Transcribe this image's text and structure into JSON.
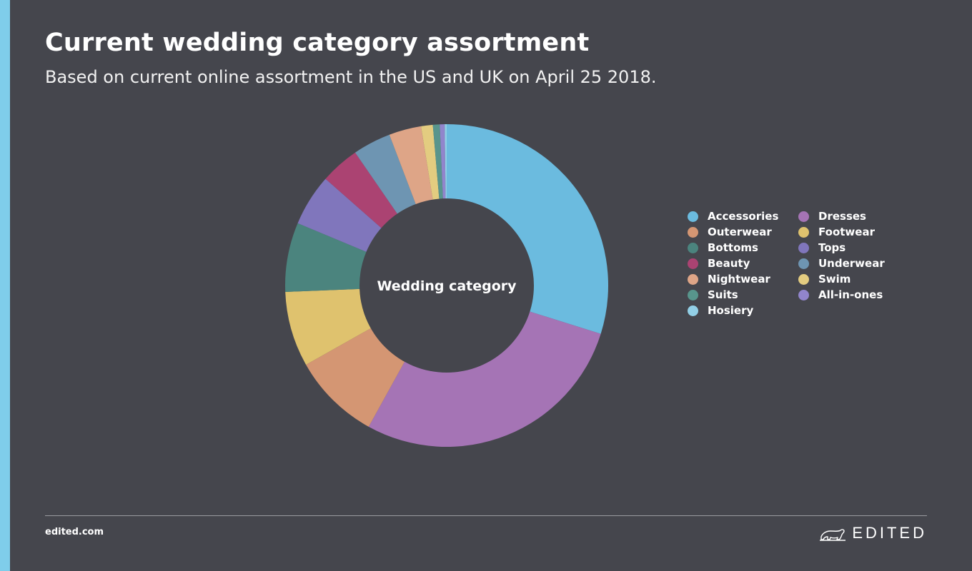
{
  "header": {
    "title": "Current wedding category assortment",
    "subtitle": "Based on current online assortment in the US and UK on April 25 2018."
  },
  "footer": {
    "url": "edited.com",
    "brand": "EDITED",
    "brand_icon": "polar-bear-icon"
  },
  "colors": {
    "background": "#45464d",
    "accent": "#7fcdea"
  },
  "chart_data": {
    "type": "pie",
    "donut": true,
    "center_label": "Wedding category",
    "legend_position": "right",
    "series": [
      {
        "name": "Accessories",
        "value": 30.5,
        "color": "#6bbbdf"
      },
      {
        "name": "Dresses",
        "value": 28.8,
        "color": "#a574b5"
      },
      {
        "name": "Outerwear",
        "value": 9.0,
        "color": "#d49673"
      },
      {
        "name": "Footwear",
        "value": 7.7,
        "color": "#dfc26e"
      },
      {
        "name": "Bottoms",
        "value": 7.1,
        "color": "#4b847e"
      },
      {
        "name": "Tops",
        "value": 5.3,
        "color": "#8076bc"
      },
      {
        "name": "Beauty",
        "value": 4.0,
        "color": "#ab4372"
      },
      {
        "name": "Underwear",
        "value": 3.9,
        "color": "#6e95b2"
      },
      {
        "name": "Nightwear",
        "value": 3.3,
        "color": "#dea587"
      },
      {
        "name": "Swim",
        "value": 1.2,
        "color": "#e3cc80"
      },
      {
        "name": "Suits",
        "value": 0.7,
        "color": "#58958c"
      },
      {
        "name": "All-in-ones",
        "value": 0.5,
        "color": "#9185cc"
      },
      {
        "name": "Hosiery",
        "value": 0.2,
        "color": "#92cfe6"
      }
    ],
    "legend_order": [
      "Accessories",
      "Dresses",
      "Outerwear",
      "Footwear",
      "Bottoms",
      "Tops",
      "Beauty",
      "Underwear",
      "Nightwear",
      "Swim",
      "Suits",
      "All-in-ones",
      "Hosiery"
    ]
  }
}
